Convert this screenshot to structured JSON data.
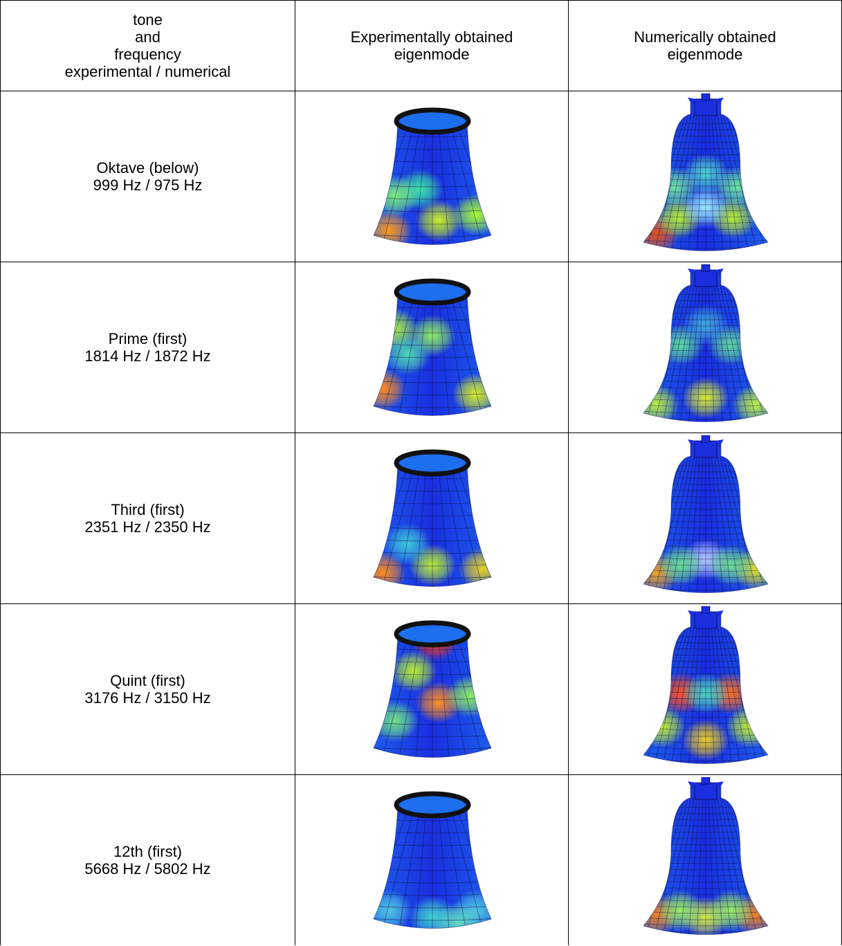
{
  "header": {
    "col1_lines": [
      "tone",
      "and",
      "frequency",
      "experimental / numerical"
    ],
    "col2_lines": [
      "Experimentally obtained",
      "eigenmode"
    ],
    "col3_lines": [
      "Numerically obtained",
      "eigenmode"
    ]
  },
  "rows": [
    {
      "tone": "Oktave (below)",
      "freq": "999 Hz / 975 Hz",
      "exp_hot": [
        [
          0.15,
          0.88,
          "#ff9a1a"
        ],
        [
          0.55,
          0.8,
          "#c8f020"
        ],
        [
          0.85,
          0.75,
          "#a8ff30"
        ],
        [
          0.4,
          0.55,
          "#39e6a6"
        ],
        [
          0.2,
          0.6,
          "#7cf07c"
        ]
      ],
      "num_hot": [
        [
          0.1,
          0.9,
          "#e8541a"
        ],
        [
          0.28,
          0.78,
          "#b8f030"
        ],
        [
          0.72,
          0.78,
          "#b8f030"
        ],
        [
          0.5,
          0.7,
          "#9cf0ff"
        ],
        [
          0.5,
          0.45,
          "#50d8d0"
        ],
        [
          0.25,
          0.55,
          "#70e6a0"
        ],
        [
          0.75,
          0.55,
          "#70e6a0"
        ]
      ]
    },
    {
      "tone": "Prime (first)",
      "freq": "1814 Hz / 1872 Hz",
      "exp_hot": [
        [
          0.5,
          0.35,
          "#8cf060"
        ],
        [
          0.2,
          0.3,
          "#a8f040"
        ],
        [
          0.85,
          0.82,
          "#d8f020"
        ],
        [
          0.1,
          0.78,
          "#ff8a1a"
        ],
        [
          0.3,
          0.5,
          "#50d8b0"
        ]
      ],
      "num_hot": [
        [
          0.3,
          0.45,
          "#60d8a0"
        ],
        [
          0.7,
          0.45,
          "#60d8a0"
        ],
        [
          0.5,
          0.85,
          "#d8f030"
        ],
        [
          0.1,
          0.9,
          "#b8f040"
        ],
        [
          0.9,
          0.9,
          "#b8f040"
        ],
        [
          0.5,
          0.3,
          "#40b0e0"
        ]
      ]
    },
    {
      "tone": "Third (first)",
      "freq": "2351 Hz / 2350 Hz",
      "exp_hot": [
        [
          0.1,
          0.88,
          "#ff8a1a"
        ],
        [
          0.5,
          0.82,
          "#b8f030"
        ],
        [
          0.9,
          0.85,
          "#e8d020"
        ],
        [
          0.3,
          0.65,
          "#3cc8d8"
        ]
      ],
      "num_hot": [
        [
          0.1,
          0.88,
          "#f0a020"
        ],
        [
          0.9,
          0.85,
          "#e0e020"
        ],
        [
          0.5,
          0.78,
          "#b8c8ff"
        ],
        [
          0.3,
          0.82,
          "#70e090"
        ],
        [
          0.7,
          0.82,
          "#70e090"
        ]
      ]
    },
    {
      "tone": "Quint (first)",
      "freq": "3176 Hz / 3150 Hz",
      "exp_hot": [
        [
          0.52,
          0.05,
          "#ff3a10"
        ],
        [
          0.35,
          0.3,
          "#b8f030"
        ],
        [
          0.55,
          0.55,
          "#ff9020"
        ],
        [
          0.2,
          0.7,
          "#70e080"
        ],
        [
          0.8,
          0.5,
          "#90f060"
        ]
      ],
      "num_hot": [
        [
          0.3,
          0.5,
          "#ff5020"
        ],
        [
          0.7,
          0.5,
          "#ff7020"
        ],
        [
          0.5,
          0.5,
          "#50d8c0"
        ],
        [
          0.15,
          0.75,
          "#c0f030"
        ],
        [
          0.85,
          0.75,
          "#c0f030"
        ],
        [
          0.5,
          0.85,
          "#f0d020"
        ]
      ]
    },
    {
      "tone": "12th (first)",
      "freq": "5668 Hz / 5802 Hz",
      "exp_hot": [
        [
          0.15,
          0.85,
          "#50c8e0"
        ],
        [
          0.5,
          0.9,
          "#40d8d0"
        ],
        [
          0.85,
          0.85,
          "#50c8e0"
        ],
        [
          0.7,
          0.95,
          "#60e0c0"
        ]
      ],
      "num_hot": [
        [
          0.1,
          0.88,
          "#f08020"
        ],
        [
          0.9,
          0.88,
          "#f08020"
        ],
        [
          0.5,
          0.9,
          "#d8f040"
        ],
        [
          0.3,
          0.85,
          "#a0f060"
        ],
        [
          0.7,
          0.85,
          "#a0f060"
        ]
      ]
    }
  ],
  "colors": {
    "base_blue": "#1a2ee0",
    "mid_blue": "#1e6ef0",
    "rim": "#111111",
    "grid": "#0a0a40"
  }
}
